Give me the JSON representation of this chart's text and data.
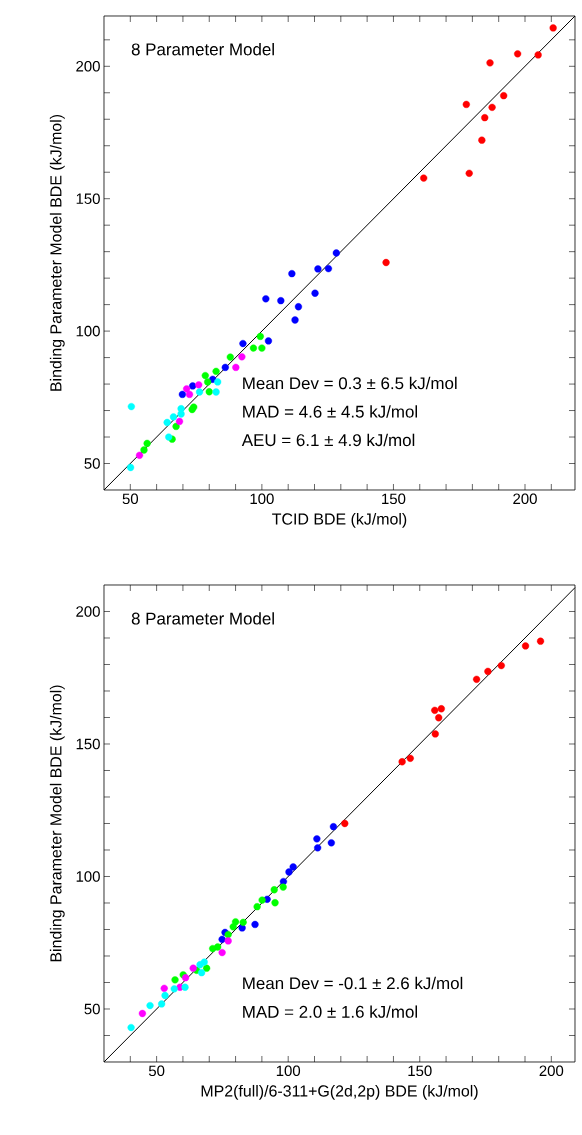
{
  "chart_data": [
    {
      "type": "scatter",
      "xlabel": "TCID BDE (kJ/mol)",
      "ylabel": "Binding Parameter Model BDE (kJ/mol)",
      "marker": "circle",
      "xlim": [
        40,
        219
      ],
      "ylim": [
        40,
        219
      ],
      "xticks": [
        50,
        {
          "value": 60,
          "label": null
        },
        {
          "value": 70,
          "label": null
        },
        {
          "value": 80,
          "label": null
        },
        {
          "value": 90,
          "label": null
        },
        100,
        {
          "value": 110,
          "label": null
        },
        {
          "value": 120,
          "label": null
        },
        {
          "value": 130,
          "label": null
        },
        {
          "value": 140,
          "label": null
        },
        150,
        {
          "value": 160,
          "label": null
        },
        {
          "value": 170,
          "label": null
        },
        {
          "value": 180,
          "label": null
        },
        {
          "value": 190,
          "label": null
        },
        200,
        {
          "value": 210,
          "label": null
        }
      ],
      "yticks": [
        50,
        {
          "value": 60,
          "label": null
        },
        {
          "value": 70,
          "label": null
        },
        {
          "value": 80,
          "label": null
        },
        {
          "value": 90,
          "label": null
        },
        100,
        {
          "value": 110,
          "label": null
        },
        {
          "value": 120,
          "label": null
        },
        {
          "value": 130,
          "label": null
        },
        {
          "value": 140,
          "label": null
        },
        150,
        {
          "value": 160,
          "label": null
        },
        {
          "value": 170,
          "label": null
        },
        {
          "value": 180,
          "label": null
        },
        {
          "value": 190,
          "label": null
        },
        200,
        {
          "value": 210,
          "label": null
        }
      ],
      "annotations": [
        "8 Parameter Model",
        "Mean Dev = 0.3 ± 6.5 kJ/mol",
        "MAD = 4.6 ± 4.5 kJ/mol",
        "AEU = 6.1 ± 4.9 kJ/mol"
      ],
      "series": [
        {
          "type": "line",
          "marker": "none",
          "color": "#000000",
          "x": [
            40,
            219
          ],
          "values": [
            40,
            219
          ]
        },
        {
          "color": "#ff0000",
          "x": [
            210.7,
            197.2,
            205,
            186.7,
            191.9,
            177.7,
            187.5,
            184.7,
            183.6,
            161.5,
            178.8,
            147.2
          ],
          "values": [
            214.5,
            204.7,
            204.3,
            201.3,
            188.9,
            185.6,
            184.5,
            180.6,
            172.1,
            157.8,
            159.6,
            125.9
          ]
        },
        {
          "color": "#0000ff",
          "x": [
            128.3,
            111.4,
            121.3,
            125.3,
            101.5,
            107.2,
            113.9,
            120.2,
            112.6,
            92.8,
            102.5,
            86.1,
            81.3,
            73.7,
            69.8
          ],
          "values": [
            129.5,
            121.7,
            123.5,
            123.6,
            112.2,
            111.5,
            109.2,
            114.3,
            104.2,
            95.3,
            96.3,
            86.3,
            81.8,
            79.3,
            76.1
          ]
        },
        {
          "color": "#00ff00",
          "x": [
            99.4,
            96.8,
            100,
            88,
            82.6,
            78.5,
            79.4,
            80,
            74.1,
            73.5,
            67.4,
            65.9,
            56.4,
            55.2
          ],
          "values": [
            98.0,
            93.6,
            93.6,
            90.2,
            84.8,
            83.2,
            80.8,
            77.1,
            71.3,
            70.4,
            64.0,
            59.2,
            57.6,
            55.1
          ]
        },
        {
          "color": "#ff00ff",
          "x": [
            92.4,
            90.1,
            76,
            71.4,
            72.5,
            68.7,
            53.5
          ],
          "values": [
            90.3,
            86.3,
            79.7,
            78.2,
            76.1,
            65.9,
            53.1
          ]
        },
        {
          "color": "#00ffff",
          "x": [
            83.2,
            82.6,
            76.3,
            69.3,
            69.3,
            66.4,
            64,
            64.6,
            50.4,
            50.1
          ],
          "values": [
            80.8,
            77.0,
            77.0,
            70.7,
            68.7,
            67.6,
            65.5,
            60.0,
            71.5,
            48.5
          ]
        }
      ]
    },
    {
      "type": "scatter",
      "xlabel": "MP2(full)/6-311+G(2d,2p) BDE (kJ/mol)",
      "ylabel": "Binding Parameter Model BDE (kJ/mol)",
      "marker": "circle",
      "xlim": [
        30,
        209
      ],
      "ylim": [
        30,
        210
      ],
      "xticks": [
        {
          "value": 40,
          "label": null
        },
        50,
        {
          "value": 60,
          "label": null
        },
        {
          "value": 70,
          "label": null
        },
        {
          "value": 80,
          "label": null
        },
        {
          "value": 90,
          "label": null
        },
        100,
        {
          "value": 110,
          "label": null
        },
        {
          "value": 120,
          "label": null
        },
        {
          "value": 130,
          "label": null
        },
        {
          "value": 140,
          "label": null
        },
        150,
        {
          "value": 160,
          "label": null
        },
        {
          "value": 170,
          "label": null
        },
        {
          "value": 180,
          "label": null
        },
        {
          "value": 190,
          "label": null
        },
        200
      ],
      "yticks": [
        {
          "value": 40,
          "label": null
        },
        50,
        {
          "value": 60,
          "label": null
        },
        {
          "value": 70,
          "label": null
        },
        {
          "value": 80,
          "label": null
        },
        {
          "value": 90,
          "label": null
        },
        100,
        {
          "value": 110,
          "label": null
        },
        {
          "value": 120,
          "label": null
        },
        {
          "value": 130,
          "label": null
        },
        {
          "value": 140,
          "label": null
        },
        150,
        {
          "value": 160,
          "label": null
        },
        {
          "value": 170,
          "label": null
        },
        {
          "value": 180,
          "label": null
        },
        {
          "value": 190,
          "label": null
        },
        200
      ],
      "annotations": [
        "8 Parameter Model",
        "Mean Dev = -0.1 ± 2.6 kJ/mol",
        "MAD = 2.0 ± 1.6 kJ/mol"
      ],
      "series": [
        {
          "type": "line",
          "marker": "none",
          "color": "#000000",
          "x": [
            30,
            209
          ],
          "values": [
            30,
            209
          ]
        },
        {
          "color": "#ff0000",
          "x": [
            195.9,
            190.2,
            181.0,
            175.9,
            171.6,
            158.2,
            155.7,
            157.2,
            155.9,
            146.4,
            143.3,
            121.5
          ],
          "values": [
            188.8,
            187.0,
            179.6,
            177.4,
            174.4,
            163.3,
            162.7,
            159.9,
            153.8,
            144.6,
            143.3,
            120.0
          ]
        },
        {
          "color": "#0000ff",
          "x": [
            117.2,
            110.9,
            111.2,
            116.4,
            101.9,
            100.3,
            98.2,
            92.0,
            87.4,
            82.5,
            76.0,
            74.9
          ],
          "values": [
            118.8,
            114.2,
            110.8,
            112.7,
            103.6,
            101.7,
            98.1,
            91.4,
            81.9,
            80.6,
            78.9,
            76.3
          ]
        },
        {
          "color": "#00ff00",
          "x": [
            98.1,
            94.7,
            95.0,
            90.1,
            88.2,
            82.9,
            80.0,
            79.1,
            77.2,
            73.2,
            71.3,
            69.0,
            65.2,
            60.1,
            57.0
          ],
          "values": [
            96.0,
            95.0,
            90.1,
            91.1,
            88.6,
            82.7,
            82.9,
            81.0,
            78.1,
            73.4,
            72.8,
            65.4,
            64.6,
            62.9,
            61.0
          ]
        },
        {
          "color": "#ff00ff",
          "x": [
            77.2,
            74.9,
            63.9,
            61.0,
            58.9,
            52.9,
            44.6
          ],
          "values": [
            75.7,
            71.3,
            65.4,
            61.8,
            58.2,
            57.8,
            48.3
          ]
        },
        {
          "color": "#00ffff",
          "x": [
            68.1,
            66.5,
            67.1,
            60.8,
            56.7,
            53.2,
            51.9,
            47.5,
            40.3
          ],
          "values": [
            67.7,
            66.7,
            63.7,
            58.2,
            57.6,
            55.1,
            51.9,
            51.3,
            43.0
          ]
        }
      ]
    }
  ]
}
